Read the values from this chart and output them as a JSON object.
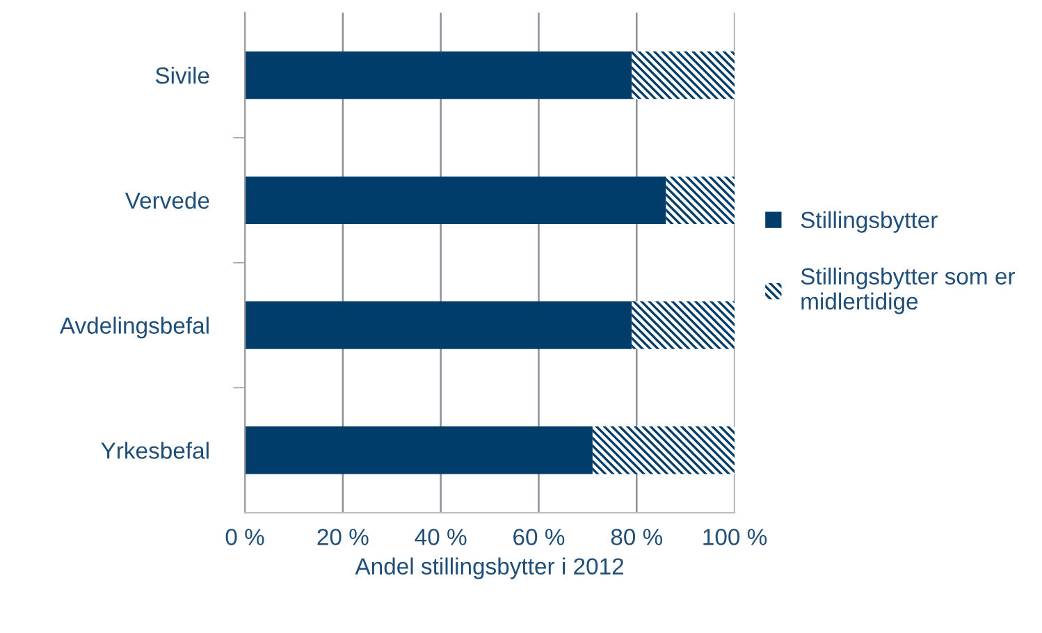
{
  "chart_data": {
    "type": "bar",
    "orientation": "horizontal",
    "stacked": true,
    "categories": [
      "Sivile",
      "Vervede",
      "Avdelingsbefal",
      "Yrkesbefal"
    ],
    "series": [
      {
        "name": "Stillingsbytter",
        "color": "#003d6b",
        "values": [
          79,
          86,
          79,
          71
        ]
      },
      {
        "name": "Stillingsbytter som er\nmidlertidige",
        "color": "#003d6b",
        "values": [
          21,
          14,
          21,
          29
        ]
      }
    ],
    "xlabel": "Andel stillingsbytter i 2012",
    "xlim": [
      0,
      100
    ],
    "xticks": [
      {
        "value": 0,
        "label": "0 %"
      },
      {
        "value": 20,
        "label": "20 %"
      },
      {
        "value": 40,
        "label": "40 %"
      },
      {
        "value": 60,
        "label": "60 %"
      },
      {
        "value": 80,
        "label": "80 %"
      },
      {
        "value": 100,
        "label": "100 %"
      }
    ],
    "grid": "x",
    "legend": "right"
  }
}
